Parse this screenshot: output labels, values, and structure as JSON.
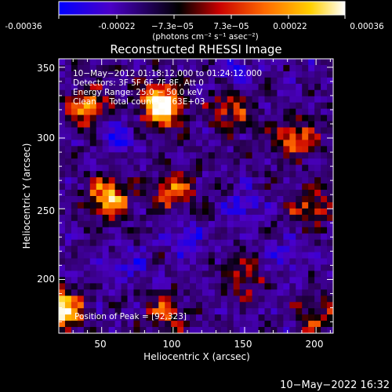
{
  "colorbar": {
    "ticks": [
      "-0.00036",
      "-0.00022",
      "−7.3e−05",
      "7.3e−05",
      "0.00022",
      "0.00036"
    ],
    "unit_label": "(photons cm⁻² s⁻¹ asec⁻²)",
    "range": [
      -0.00036,
      0.00036
    ],
    "colors": [
      "#0000ff",
      "#4b00c8",
      "#000000",
      "#c80000",
      "#ff6a00",
      "#ffd000",
      "#ffffff"
    ]
  },
  "annotations": {
    "line1": "10−May−2012 01:18:12.000 to 01:24:12.000",
    "line2": "Detectors: 3F 5F 6F 7F 8F, Att 0",
    "line3": "Energy Range: 25.0 − 50.0 keV",
    "line4": "Clean     Total counts: 3.63E+03",
    "peak": "Position of Peak = [92,323]"
  },
  "footer": {
    "timestamp": "10−May−2022 16:32"
  },
  "chart_data": {
    "type": "heatmap",
    "title": "Reconstructed RHESSI Image",
    "xlabel": "Heliocentric X (arcsec)",
    "ylabel": "Heliocentric Y (arcsec)",
    "xlim": [
      20,
      212
    ],
    "ylim": [
      162,
      356
    ],
    "xticks": [
      "50",
      "100",
      "150",
      "200"
    ],
    "yticks": [
      "200",
      "250",
      "300",
      "350"
    ],
    "grid": false,
    "colormap": "blue-purple-black-red-yellow-white",
    "peak": [
      92,
      323
    ],
    "hot_regions": [
      {
        "x": 92,
        "y": 323,
        "level": 1.0
      },
      {
        "x": 40,
        "y": 322,
        "level": 0.55
      },
      {
        "x": 55,
        "y": 258,
        "level": 0.7
      },
      {
        "x": 100,
        "y": 262,
        "level": 0.5
      },
      {
        "x": 22,
        "y": 178,
        "level": 0.85
      },
      {
        "x": 140,
        "y": 320,
        "level": 0.45
      },
      {
        "x": 185,
        "y": 300,
        "level": 0.5
      },
      {
        "x": 195,
        "y": 250,
        "level": 0.4
      },
      {
        "x": 95,
        "y": 175,
        "level": 0.4
      },
      {
        "x": 150,
        "y": 200,
        "level": 0.35
      },
      {
        "x": 200,
        "y": 175,
        "level": 0.35
      }
    ],
    "cold_regions": [
      {
        "x": 60,
        "y": 300,
        "level": 0.5
      },
      {
        "x": 110,
        "y": 230,
        "level": 0.45
      },
      {
        "x": 150,
        "y": 250,
        "level": 0.5
      },
      {
        "x": 145,
        "y": 345,
        "level": 0.45
      },
      {
        "x": 70,
        "y": 210,
        "level": 0.4
      },
      {
        "x": 180,
        "y": 215,
        "level": 0.45
      }
    ]
  }
}
